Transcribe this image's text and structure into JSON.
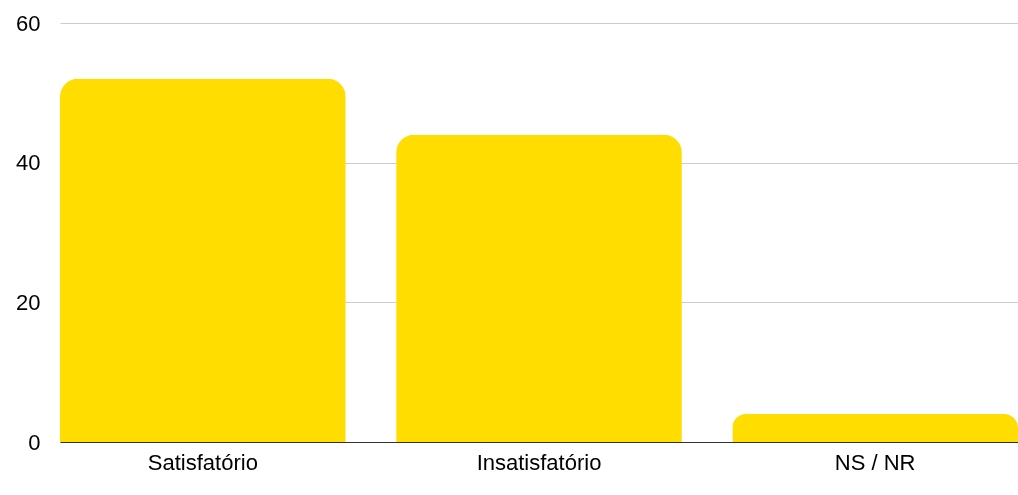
{
  "chart_data": {
    "type": "bar",
    "categories": [
      "Satisfatório",
      "Insatisfatório",
      "NS / NR"
    ],
    "values": [
      52,
      44,
      4
    ],
    "color": "#ffdd00",
    "ylim": [
      0,
      60
    ],
    "yticks": [
      0,
      20,
      40,
      60
    ],
    "grid": "y"
  }
}
